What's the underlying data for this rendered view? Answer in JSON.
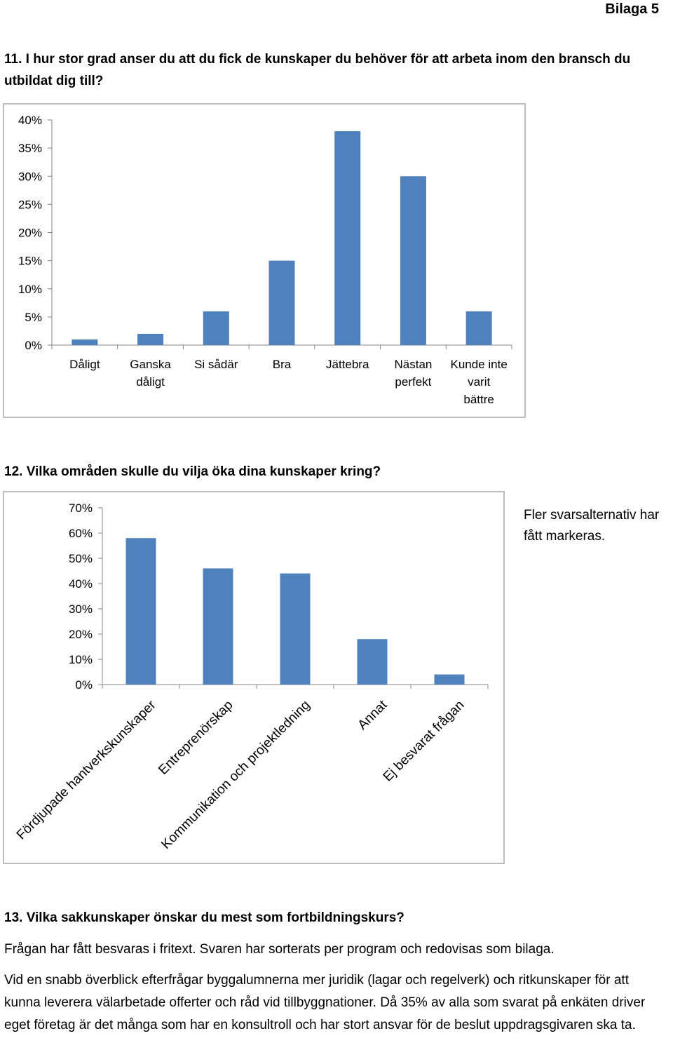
{
  "header": {
    "appendix": "Bilaga 5"
  },
  "q11": {
    "title": "11. I hur stor grad anser du att du fick de kunskaper du behöver för att arbeta inom den bransch du utbildat dig till?"
  },
  "q12": {
    "title": "12. Vilka områden skulle du vilja öka dina kunskaper kring?",
    "note": "Fler svarsalternativ har fått markeras."
  },
  "q13": {
    "title": "13. Vilka sakkunskaper önskar du mest som fortbildningskurs?",
    "paragraph1": "Frågan har fått besvaras i fritext. Svaren har sorterats per program och redovisas som bilaga.",
    "paragraph2": "Vid en snabb överblick efterfrågar byggalumnerna mer juridik (lagar och regelverk) och ritkunskaper för att kunna leverera välarbetade offerter och råd vid tillbyggnationer. Då 35% av alla som svarat på enkäten driver eget företag är det många som har en konsultroll och har stort ansvar för de beslut uppdragsgivaren ska ta."
  },
  "chart_data": [
    {
      "type": "bar",
      "categories": [
        "Dåligt",
        "Ganska dåligt",
        "Si sådär",
        "Bra",
        "Jättebra",
        "Nästan perfekt",
        "Kunde inte varit bättre"
      ],
      "category_lines": [
        [
          "Dåligt"
        ],
        [
          "Ganska",
          "dåligt"
        ],
        [
          "Si sådär"
        ],
        [
          "Bra"
        ],
        [
          "Jättebra"
        ],
        [
          "Nästan",
          "perfekt"
        ],
        [
          "Kunde inte",
          "varit",
          "bättre"
        ]
      ],
      "values": [
        1,
        2,
        6,
        15,
        38,
        30,
        6
      ],
      "ylim": [
        0,
        40
      ],
      "yticks": [
        "0%",
        "5%",
        "10%",
        "15%",
        "20%",
        "25%",
        "30%",
        "35%",
        "40%"
      ],
      "grid": false,
      "legend": "none",
      "bar_color": "#4f81bd"
    },
    {
      "type": "bar",
      "categories": [
        "Fördjupade hantverkskunskaper",
        "Entreprenörskap",
        "Kommunikation och projektledning",
        "Annat",
        "Ej besvarat frågan"
      ],
      "values": [
        58,
        46,
        44,
        18,
        4
      ],
      "ylim": [
        0,
        70
      ],
      "yticks": [
        "0%",
        "10%",
        "20%",
        "30%",
        "40%",
        "50%",
        "60%",
        "70%"
      ],
      "grid": false,
      "legend": "none",
      "bar_color": "#4f81bd"
    }
  ]
}
